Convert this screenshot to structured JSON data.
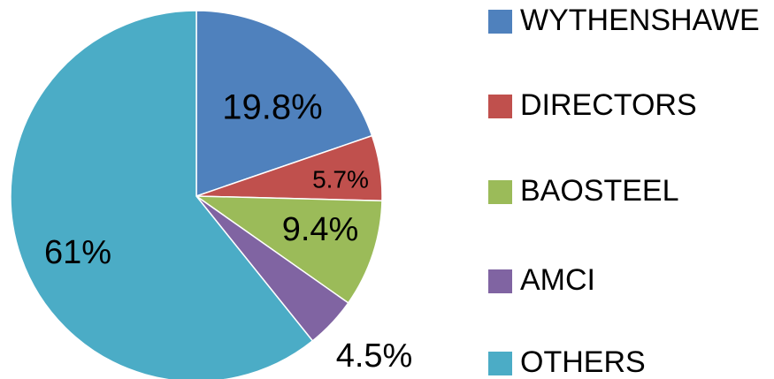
{
  "chart_data": {
    "type": "pie",
    "categories": [
      "WYTHENSHAWE",
      "DIRECTORS",
      "BAOSTEEL",
      "AMCI",
      "OTHERS"
    ],
    "values": [
      19.8,
      5.7,
      9.4,
      4.5,
      61
    ],
    "value_labels": [
      "19.8%",
      "5.7%",
      "9.4%",
      "4.5%",
      "61%"
    ],
    "colors": [
      "#4f81bd",
      "#c0504d",
      "#9bbb59",
      "#8064a2",
      "#4bacc6"
    ],
    "legend": "right"
  }
}
